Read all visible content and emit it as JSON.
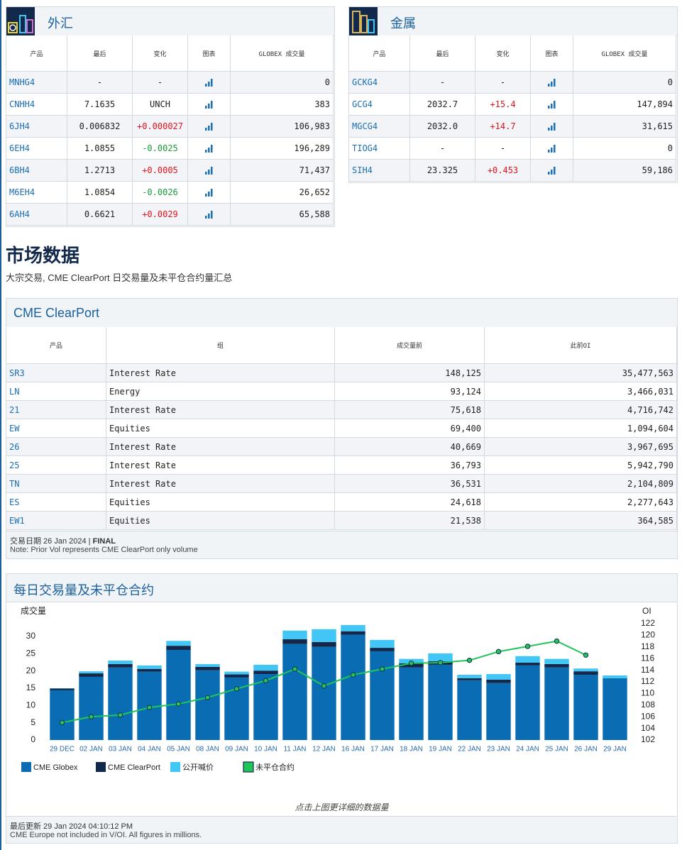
{
  "fx": {
    "title": "外汇",
    "columns": [
      "产品",
      "最后",
      "变化",
      "图表",
      "GLOBEX 成交量"
    ],
    "rows": [
      [
        "MNHG4",
        "-",
        "-",
        "0"
      ],
      [
        "CNHH4",
        "7.1635",
        "UNCH",
        "383"
      ],
      [
        "6JH4",
        "0.006832",
        "+0.000027",
        "106,983"
      ],
      [
        "6EH4",
        "1.0855",
        "-0.0025",
        "196,289"
      ],
      [
        "6BH4",
        "1.2713",
        "+0.0005",
        "71,437"
      ],
      [
        "M6EH4",
        "1.0854",
        "-0.0026",
        "26,652"
      ],
      [
        "6AH4",
        "0.6621",
        "+0.0029",
        "65,588"
      ]
    ]
  },
  "metals": {
    "title": "金属",
    "columns": [
      "产品",
      "最后",
      "变化",
      "图表",
      "GLOBEX 成交量"
    ],
    "rows": [
      [
        "GCKG4",
        "-",
        "-",
        "0"
      ],
      [
        "GCG4",
        "2032.7",
        "+15.4",
        "147,894"
      ],
      [
        "MGCG4",
        "2032.0",
        "+14.7",
        "31,615"
      ],
      [
        "TIOG4",
        "-",
        "-",
        "0"
      ],
      [
        "SIH4",
        "23.325",
        "+0.453",
        "59,186"
      ]
    ]
  },
  "market": {
    "title": "市场数据",
    "subtitle": "大宗交易, CME ClearPort 日交易量及未平仓合约量汇总"
  },
  "clearport": {
    "title": "CME ClearPort",
    "columns": [
      "产品",
      "组",
      "成交量前",
      "此前OI"
    ],
    "rows": [
      [
        "SR3",
        "Interest Rate",
        "148,125",
        "35,477,563"
      ],
      [
        "LN",
        "Energy",
        "93,124",
        "3,466,031"
      ],
      [
        "21",
        "Interest Rate",
        "75,618",
        "4,716,742"
      ],
      [
        "EW",
        "Equities",
        "69,400",
        "1,094,604"
      ],
      [
        "26",
        "Interest Rate",
        "40,669",
        "3,967,695"
      ],
      [
        "25",
        "Interest Rate",
        "36,793",
        "5,942,790"
      ],
      [
        "TN",
        "Interest Rate",
        "36,531",
        "2,104,809"
      ],
      [
        "ES",
        "Equities",
        "24,618",
        "2,277,643"
      ],
      [
        "EW1",
        "Equities",
        "21,538",
        "364,585"
      ]
    ],
    "trade_date": "交易日期 26 Jan 2024 |",
    "status": "FINAL",
    "note": "Note: Prior Vol represents CME ClearPort only volume"
  },
  "chart_panel": {
    "title": "每日交易量及未平仓合约",
    "hint": "点击上图更详细的数据量",
    "updated": "最后更新 29 Jan 2024 04:10:12 PM",
    "disclaimer": "CME Europe not included in V/OI. All figures in millions."
  },
  "chart_data": {
    "type": "bar",
    "stacked": true,
    "grid": false,
    "ylabel": "成交量",
    "y2label": "OI",
    "categories": [
      "29 DEC",
      "02 JAN",
      "03 JAN",
      "04 JAN",
      "05 JAN",
      "08 JAN",
      "09 JAN",
      "10 JAN",
      "11 JAN",
      "12 JAN",
      "16 JAN",
      "17 JAN",
      "18 JAN",
      "19 JAN",
      "22 JAN",
      "23 JAN",
      "24 JAN",
      "25 JAN",
      "26 JAN",
      "29 JAN"
    ],
    "series": [
      {
        "name": "CME Globex",
        "color": "#0a6db3",
        "values": [
          14.4,
          18.3,
          21.0,
          19.8,
          26.1,
          20.2,
          18.1,
          19.1,
          27.8,
          27.0,
          30.5,
          25.7,
          21.0,
          21.8,
          17.3,
          16.5,
          21.6,
          21.0,
          18.9,
          17.9
        ]
      },
      {
        "name": "CME ClearPort",
        "color": "#13294b",
        "values": [
          0.5,
          1.0,
          1.0,
          0.8,
          1.2,
          1.0,
          0.9,
          1.0,
          1.4,
          1.4,
          1.0,
          1.0,
          1.2,
          1.0,
          0.6,
          1.0,
          0.8,
          1.0,
          1.0,
          0
        ]
      },
      {
        "name": "公开喊价",
        "color": "#41c6f5",
        "values": [
          0.1,
          0.6,
          1.0,
          1.0,
          1.4,
          0.8,
          0.8,
          1.7,
          2.5,
          3.7,
          1.8,
          2.3,
          1.3,
          2.3,
          1.0,
          1.6,
          1.9,
          1.5,
          0.8,
          0.8
        ]
      },
      {
        "name": "未平仓合约",
        "color": "#20c55a",
        "type": "line",
        "axis": "y2",
        "values": [
          105.0,
          106.0,
          106.3,
          107.6,
          108.2,
          109.3,
          110.8,
          112.2,
          114.2,
          111.3,
          113.2,
          114.2,
          115.2,
          115.3,
          115.7,
          117.2,
          118.1,
          119.0,
          116.6,
          null
        ]
      }
    ],
    "ylim": [
      0,
      33.7
    ],
    "yticks": [
      0,
      5,
      10,
      15,
      20,
      25,
      30
    ],
    "y2lim": [
      102,
      122
    ],
    "y2ticks": [
      102,
      104,
      106,
      108,
      110,
      112,
      114,
      116,
      118,
      120,
      122
    ]
  }
}
